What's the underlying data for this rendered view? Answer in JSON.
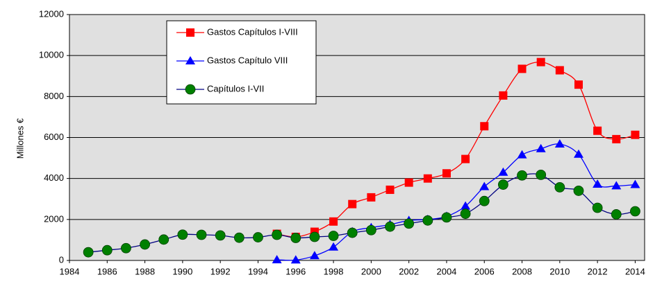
{
  "chart_data": {
    "type": "line",
    "y_label": "Millones €",
    "x": [
      1985,
      1986,
      1987,
      1988,
      1989,
      1990,
      1991,
      1992,
      1993,
      1994,
      1995,
      1996,
      1997,
      1998,
      1999,
      2000,
      2001,
      2002,
      2003,
      2004,
      2005,
      2006,
      2007,
      2008,
      2009,
      2010,
      2011,
      2012,
      2013,
      2014
    ],
    "series": [
      {
        "name": "Gastos Capítulos I-VIII",
        "color": "#ff0000",
        "marker": "square",
        "values": [
          null,
          null,
          null,
          null,
          null,
          null,
          null,
          null,
          null,
          null,
          1300,
          1150,
          1400,
          1900,
          2750,
          3080,
          3450,
          3800,
          4000,
          4250,
          4950,
          6550,
          8050,
          9350,
          9680,
          9280,
          8580,
          6330,
          5920,
          6130
        ]
      },
      {
        "name": "Gastos Capítulo VIII",
        "color": "#0000ff",
        "marker": "triangle",
        "values": [
          null,
          null,
          null,
          null,
          null,
          null,
          null,
          null,
          null,
          null,
          30,
          20,
          230,
          650,
          1400,
          1600,
          1750,
          1950,
          2000,
          2150,
          2650,
          3600,
          4300,
          5150,
          5450,
          5680,
          5180,
          3720,
          3640,
          3700
        ]
      },
      {
        "name": "Capítulos I-VII",
        "color": "#008000",
        "line_color": "#000080",
        "marker": "circle",
        "values": [
          400,
          500,
          600,
          780,
          1020,
          1260,
          1250,
          1220,
          1110,
          1130,
          1250,
          1100,
          1150,
          1200,
          1350,
          1480,
          1650,
          1800,
          1950,
          2100,
          2280,
          2900,
          3700,
          4150,
          4180,
          3570,
          3400,
          2570,
          2250,
          2400
        ]
      }
    ],
    "xlim": [
      1984,
      2014.5
    ],
    "xticks": [
      1984,
      1986,
      1988,
      1990,
      1992,
      1994,
      1996,
      1998,
      2000,
      2002,
      2004,
      2006,
      2008,
      2010,
      2012,
      2014
    ],
    "ylim": [
      0,
      12000
    ],
    "yticks": [
      0,
      2000,
      4000,
      6000,
      8000,
      10000,
      12000
    ],
    "grid": true,
    "smooth": true,
    "legend": "upper left"
  }
}
